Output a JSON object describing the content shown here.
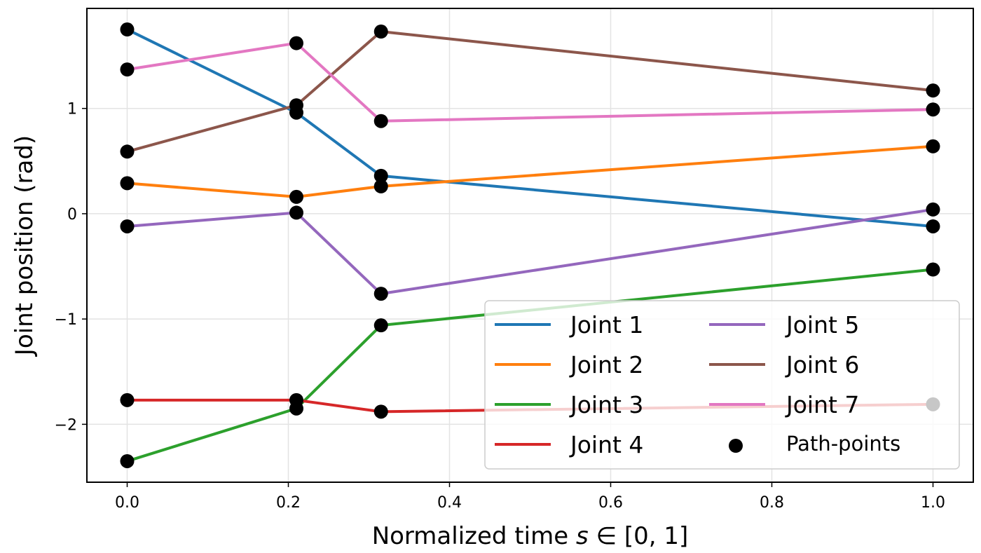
{
  "chart_data": {
    "type": "line",
    "title": "",
    "xlabel": "Normalized time ",
    "xlabel_math": "s",
    "xlabel_suffix": " ∈ [0, 1]",
    "ylabel": "Joint position (rad)",
    "xlim": [
      -0.05,
      1.05
    ],
    "ylim": [
      -2.55,
      1.95
    ],
    "xticks": [
      0.0,
      0.2,
      0.4,
      0.6,
      0.8,
      1.0
    ],
    "xtick_labels": [
      "0.0",
      "0.2",
      "0.4",
      "0.6",
      "0.8",
      "1.0"
    ],
    "yticks": [
      -2,
      -1,
      0,
      1
    ],
    "ytick_labels": [
      "−2",
      "−1",
      "0",
      "1"
    ],
    "grid": true,
    "legend_position": "lower-right",
    "x": [
      0.0,
      0.21,
      0.315,
      1.0
    ],
    "series": [
      {
        "name": "Joint 1",
        "color": "#1f77b4",
        "values": [
          1.75,
          0.96,
          0.36,
          -0.12
        ]
      },
      {
        "name": "Joint 2",
        "color": "#ff7f0e",
        "values": [
          0.29,
          0.16,
          0.26,
          0.64
        ]
      },
      {
        "name": "Joint 3",
        "color": "#2ca02c",
        "values": [
          -2.35,
          -1.85,
          -1.06,
          -0.53
        ]
      },
      {
        "name": "Joint 4",
        "color": "#d62728",
        "values": [
          -1.77,
          -1.77,
          -1.88,
          -1.81
        ]
      },
      {
        "name": "Joint 5",
        "color": "#9467bd",
        "values": [
          -0.12,
          0.01,
          -0.76,
          0.04
        ]
      },
      {
        "name": "Joint 6",
        "color": "#8c564b",
        "values": [
          0.59,
          1.03,
          1.73,
          1.17
        ]
      },
      {
        "name": "Joint 7",
        "color": "#e377c2",
        "values": [
          1.37,
          1.62,
          0.88,
          0.99
        ]
      }
    ],
    "points_label": "Path-points",
    "points_color": "#000000"
  }
}
